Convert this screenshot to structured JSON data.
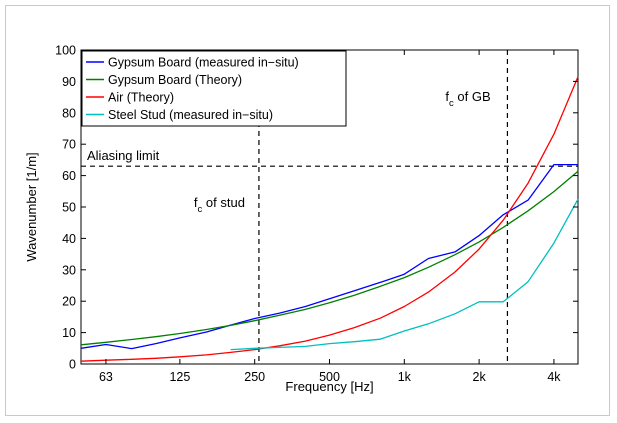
{
  "chart_data": {
    "type": "line",
    "xlabel": "Frequency [Hz]",
    "ylabel": "Wavenumber [1/m]",
    "x_scale": "log",
    "xlim": [
      50,
      5000
    ],
    "ylim": [
      0,
      100
    ],
    "x_ticks": [
      {
        "value": 63,
        "label": "63"
      },
      {
        "value": 125,
        "label": "125"
      },
      {
        "value": 250,
        "label": "250"
      },
      {
        "value": 500,
        "label": "500"
      },
      {
        "value": 1000,
        "label": "1k"
      },
      {
        "value": 2000,
        "label": "2k"
      },
      {
        "value": 4000,
        "label": "4k"
      }
    ],
    "y_ticks": [
      0,
      10,
      20,
      30,
      40,
      50,
      60,
      70,
      80,
      90,
      100
    ],
    "grid": false,
    "legend_placement": "top-left",
    "series": [
      {
        "name": "Gypsum Board (measured in−situ)",
        "color": "#0000ff",
        "x": [
          50,
          63,
          80,
          100,
          125,
          160,
          200,
          250,
          315,
          400,
          500,
          630,
          800,
          1000,
          1250,
          1600,
          2000,
          2500,
          3150,
          4000,
          5000
        ],
        "y": [
          5,
          6.2,
          4.9,
          6.5,
          8.3,
          10.2,
          12.4,
          14.5,
          16.2,
          18.3,
          20.8,
          23.3,
          26,
          28.6,
          33.6,
          35.7,
          40.9,
          47.5,
          52.2,
          63.5,
          63.5
        ]
      },
      {
        "name": "Gypsum Board (Theory)",
        "color": "#008000",
        "x": [
          50,
          63,
          80,
          100,
          125,
          160,
          200,
          250,
          315,
          400,
          500,
          630,
          800,
          1000,
          1250,
          1600,
          2000,
          2500,
          3150,
          4000,
          5000
        ],
        "y": [
          6.1,
          6.9,
          7.8,
          8.7,
          9.7,
          11.0,
          12.3,
          13.8,
          15.5,
          17.4,
          19.5,
          21.9,
          24.7,
          27.5,
          30.8,
          34.8,
          38.9,
          43.5,
          48.8,
          54.9,
          61.4
        ]
      },
      {
        "name": "Air (Theory)",
        "color": "#ff0000",
        "x": [
          50,
          63,
          80,
          100,
          125,
          160,
          200,
          250,
          315,
          400,
          500,
          630,
          800,
          1000,
          1250,
          1600,
          2000,
          2500,
          3150,
          4000,
          5000
        ],
        "y": [
          0.9,
          1.2,
          1.5,
          1.8,
          2.3,
          2.9,
          3.7,
          4.6,
          5.8,
          7.3,
          9.2,
          11.6,
          14.6,
          18.3,
          22.9,
          29.3,
          36.6,
          45.8,
          57.6,
          73.2,
          91.5
        ]
      },
      {
        "name": "Steel Stud (measured in−situ)",
        "color": "#00bfbf",
        "x": [
          200,
          250,
          315,
          400,
          500,
          630,
          800,
          1000,
          1250,
          1600,
          2000,
          2500,
          3150,
          4000,
          5000
        ],
        "y": [
          4.6,
          5,
          5.3,
          5.6,
          6.5,
          7.1,
          7.9,
          10.5,
          12.8,
          16,
          19.8,
          19.8,
          26.2,
          38.5,
          52.5
        ]
      }
    ],
    "reference_lines": [
      {
        "orientation": "horizontal",
        "value": 63,
        "label": "Aliasing limit"
      },
      {
        "orientation": "vertical",
        "value": 260,
        "label_main": "f",
        "label_sub": "c",
        "label_rest": " of stud"
      },
      {
        "orientation": "vertical",
        "value": 2600,
        "label_main": "f",
        "label_sub": "c",
        "label_rest": " of GB"
      }
    ]
  }
}
